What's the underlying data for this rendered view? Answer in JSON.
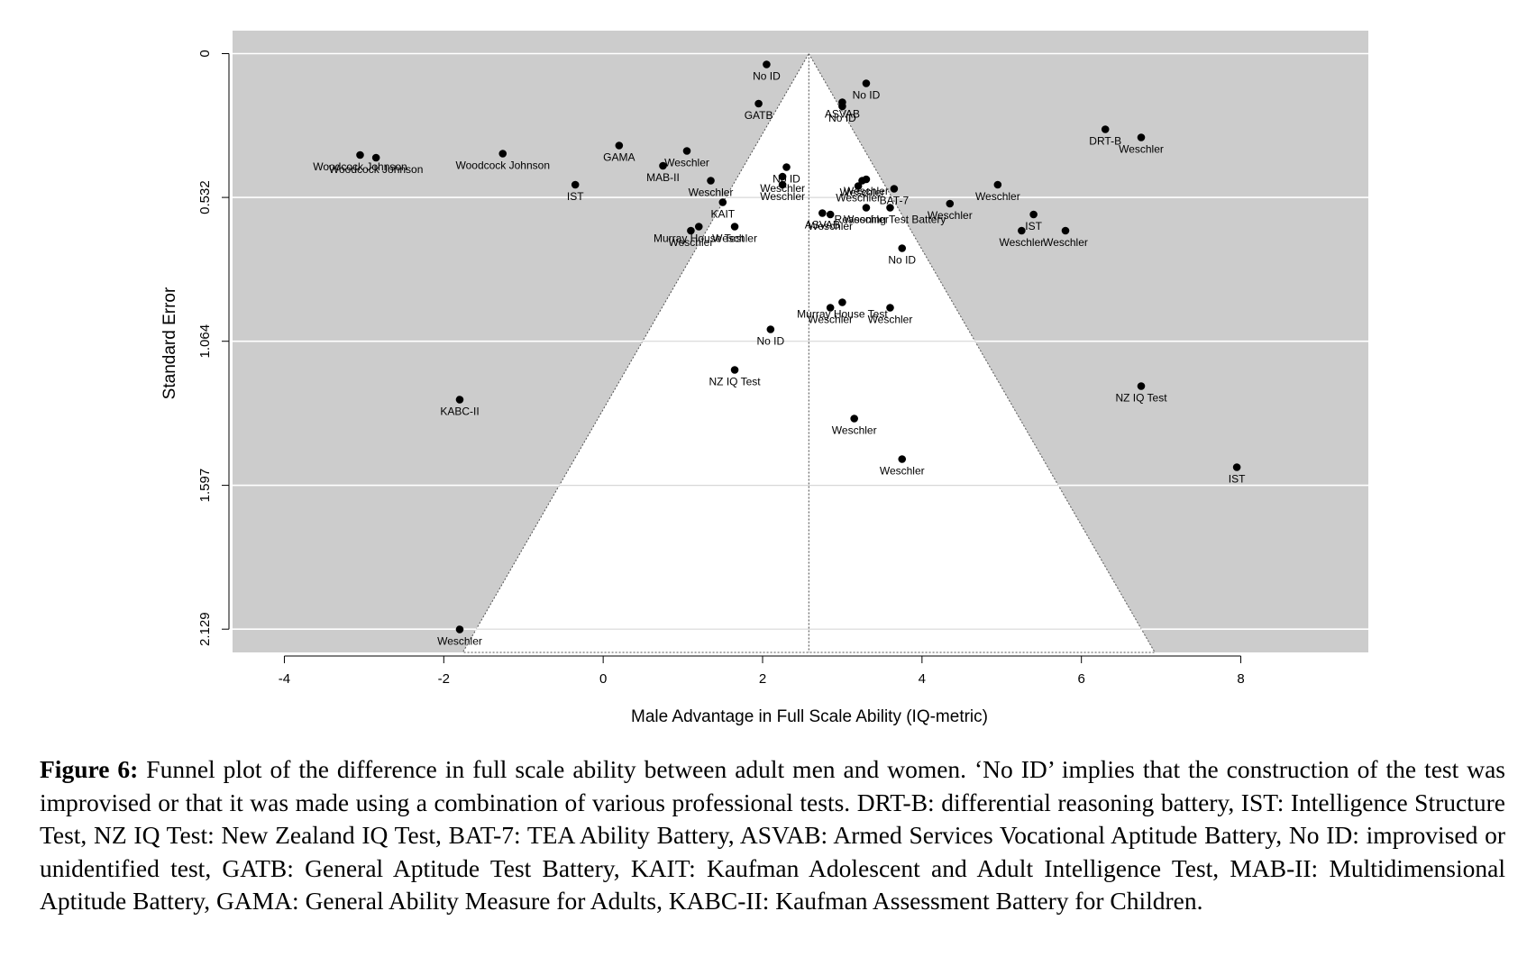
{
  "chart_data": {
    "type": "scatter",
    "subtype": "funnel",
    "xlabel": "Male Advantage in Full Scale Ability (IQ-metric)",
    "ylabel": "Standard Error",
    "xlim": [
      -4.65,
      9.6
    ],
    "ylim": [
      2.215,
      -0.085
    ],
    "y_reversed": true,
    "grid": "horizontal",
    "x_ticks": [
      -4,
      -2,
      0,
      2,
      4,
      6,
      8
    ],
    "x_tick_labels": [
      "-4",
      "-2",
      "0",
      "2",
      "4",
      "6",
      "8"
    ],
    "y_ticks": [
      0,
      0.532,
      1.064,
      1.597,
      2.129
    ],
    "y_tick_labels": [
      "0",
      "0.532",
      "1.064",
      "1.597",
      "2.129"
    ],
    "funnel_center": 2.58,
    "funnel_multiplier": 1.96,
    "colors": {
      "panel": "#cccccc",
      "funnel": "#ffffff",
      "grid": "#ffffff",
      "point": "#000000"
    },
    "points": [
      {
        "x": 2.05,
        "se": 0.04,
        "label": "No ID"
      },
      {
        "x": 3.3,
        "se": 0.11,
        "label": "No ID"
      },
      {
        "x": 1.95,
        "se": 0.185,
        "label": "GATB"
      },
      {
        "x": 3.0,
        "se": 0.18,
        "label": "ASVAB"
      },
      {
        "x": 3.0,
        "se": 0.195,
        "label": "No ID"
      },
      {
        "x": 6.3,
        "se": 0.28,
        "label": "DRT-B"
      },
      {
        "x": 6.75,
        "se": 0.31,
        "label": "Weschler"
      },
      {
        "x": -3.05,
        "se": 0.375,
        "label": "Woodcock Johnson"
      },
      {
        "x": -2.85,
        "se": 0.385,
        "label": "Woodcock Johnson"
      },
      {
        "x": -1.26,
        "se": 0.37,
        "label": "Woodcock Johnson"
      },
      {
        "x": 0.2,
        "se": 0.34,
        "label": "GAMA"
      },
      {
        "x": 1.05,
        "se": 0.36,
        "label": "Weschler"
      },
      {
        "x": 0.75,
        "se": 0.415,
        "label": "MAB-II"
      },
      {
        "x": 2.3,
        "se": 0.42,
        "label": "No ID"
      },
      {
        "x": 2.25,
        "se": 0.455,
        "label": "Weschler"
      },
      {
        "x": 2.25,
        "se": 0.485,
        "label": "Weschler"
      },
      {
        "x": -0.35,
        "se": 0.485,
        "label": "IST"
      },
      {
        "x": 1.35,
        "se": 0.47,
        "label": "Weschler"
      },
      {
        "x": 3.2,
        "se": 0.49,
        "label": "Weschler"
      },
      {
        "x": 3.25,
        "se": 0.47,
        "label": "Weschler"
      },
      {
        "x": 3.3,
        "se": 0.465,
        "label": "Weschler"
      },
      {
        "x": 3.65,
        "se": 0.5,
        "label": "BAT-7"
      },
      {
        "x": 4.95,
        "se": 0.485,
        "label": "Weschler"
      },
      {
        "x": 1.5,
        "se": 0.55,
        "label": "KAIT"
      },
      {
        "x": 3.3,
        "se": 0.57,
        "label": "Weschler"
      },
      {
        "x": 3.6,
        "se": 0.57,
        "label": "Reasoning Test Battery"
      },
      {
        "x": 4.35,
        "se": 0.555,
        "label": "Weschler"
      },
      {
        "x": 2.75,
        "se": 0.59,
        "label": "ASVAB"
      },
      {
        "x": 2.85,
        "se": 0.595,
        "label": "Weschler"
      },
      {
        "x": 5.4,
        "se": 0.595,
        "label": "IST"
      },
      {
        "x": 1.2,
        "se": 0.64,
        "label": "Murray House Test"
      },
      {
        "x": 1.1,
        "se": 0.655,
        "label": "Weschler"
      },
      {
        "x": 1.65,
        "se": 0.64,
        "label": "Weschler"
      },
      {
        "x": 5.25,
        "se": 0.655,
        "label": "Weschler"
      },
      {
        "x": 5.8,
        "se": 0.655,
        "label": "Weschler"
      },
      {
        "x": 3.75,
        "se": 0.72,
        "label": "No ID"
      },
      {
        "x": 3.0,
        "se": 0.92,
        "label": "Murray House Test"
      },
      {
        "x": 2.85,
        "se": 0.94,
        "label": "Weschler"
      },
      {
        "x": 3.6,
        "se": 0.94,
        "label": "Weschler"
      },
      {
        "x": 2.1,
        "se": 1.02,
        "label": "No ID"
      },
      {
        "x": 1.65,
        "se": 1.17,
        "label": "NZ IQ Test"
      },
      {
        "x": -1.8,
        "se": 1.28,
        "label": "KABC-II"
      },
      {
        "x": 6.75,
        "se": 1.23,
        "label": "NZ IQ Test"
      },
      {
        "x": 3.15,
        "se": 1.35,
        "label": "Weschler"
      },
      {
        "x": 3.75,
        "se": 1.5,
        "label": "Weschler"
      },
      {
        "x": 7.95,
        "se": 1.53,
        "label": "IST"
      },
      {
        "x": -1.8,
        "se": 2.13,
        "label": "Weschler"
      }
    ]
  },
  "caption": {
    "label": "Figure 6:",
    "text": "Funnel plot of the difference in full scale ability between adult men and women. ‘No ID’ implies that the construction of the test was improvised or that it was made using a combination of various professional tests. DRT-B: differential reasoning battery, IST: Intelligence Structure Test, NZ IQ Test: New Zealand IQ Test, BAT-7: TEA Ability Battery, ASVAB: Armed Services Vocational Aptitude Battery, No ID: improvised or unidentified test, GATB: General Aptitude Test Battery, KAIT: Kaufman Adolescent and Adult Intelligence Test, MAB-II: Multidimensional Aptitude Battery, GAMA: General Ability Measure for Adults, KABC-II: Kaufman Assessment Battery for Children."
  }
}
